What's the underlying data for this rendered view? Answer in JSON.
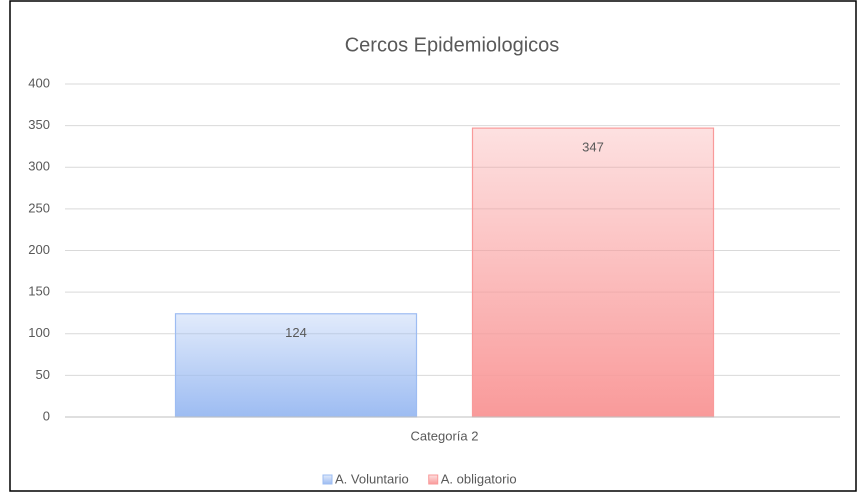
{
  "chart_data": {
    "type": "bar",
    "title": "Cercos Epidemiologicos",
    "categories": [
      "Categoría 2"
    ],
    "series": [
      {
        "name": "A. Voluntario",
        "color": "#9dbcf2",
        "values": [
          124
        ]
      },
      {
        "name": "A. obligatorio",
        "color": "#f99a9a",
        "values": [
          347
        ]
      }
    ],
    "ylim": [
      0,
      400
    ],
    "yticks": [
      0,
      50,
      100,
      150,
      200,
      250,
      300,
      350,
      400
    ],
    "grid": true,
    "legend": "bottom"
  }
}
